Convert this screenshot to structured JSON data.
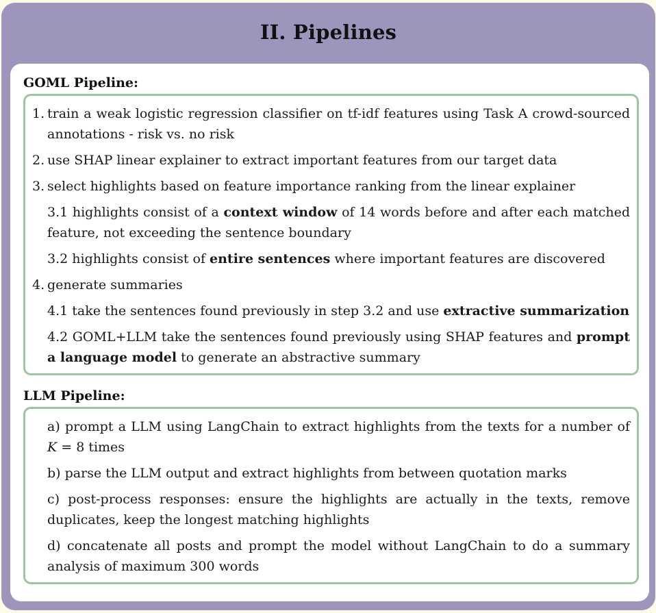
{
  "title": "II. Pipelines",
  "goml": {
    "heading": "GOML Pipeline:",
    "items": [
      {
        "num": "1.",
        "text": "train a weak logistic regression classifier on tf-idf features using Task A crowd-sourced annotations - risk vs. no risk"
      },
      {
        "num": "2.",
        "text": "use SHAP linear explainer to extract important features from our target data"
      },
      {
        "num": "3.",
        "text": "select highlights based on feature importance ranking from the linear explainer"
      },
      {
        "prefix": "3.1 highlights consist of a ",
        "bold": "context window",
        "suffix": " of 14 words before and after each matched feature, not exceeding the sentence boundary"
      },
      {
        "prefix": "3.2 highlights consist of ",
        "bold": "entire sentences",
        "suffix": " where important features are discovered"
      },
      {
        "num": "4.",
        "text": "generate summaries"
      },
      {
        "prefix": "4.1 take the sentences found previously in step 3.2 and use ",
        "bold": "extractive summarization",
        "suffix": ""
      },
      {
        "prefix": "4.2 GOML+LLM take the sentences found previously using SHAP features and ",
        "bold": "prompt a language model",
        "suffix": " to generate an abstractive summary"
      }
    ]
  },
  "llm": {
    "heading": "LLM Pipeline:",
    "items": [
      {
        "prefix": "a) prompt a LLM using LangChain to extract highlights from the texts for a number of ",
        "math": "K",
        "suffix": " = 8 times"
      },
      {
        "text": "b) parse the LLM output and extract highlights from between quotation marks"
      },
      {
        "text": "c) post-process responses: ensure the highlights are actually in the texts, remove duplicates, keep the longest matching highlights"
      },
      {
        "text": "d) concatenate all posts and prompt the model without LangChain to do a summary analysis of maximum 300 words"
      }
    ]
  },
  "colors": {
    "outer_frame": "#9e95bd",
    "list_border": "#9dc59f",
    "background": "#fbfbe6"
  }
}
